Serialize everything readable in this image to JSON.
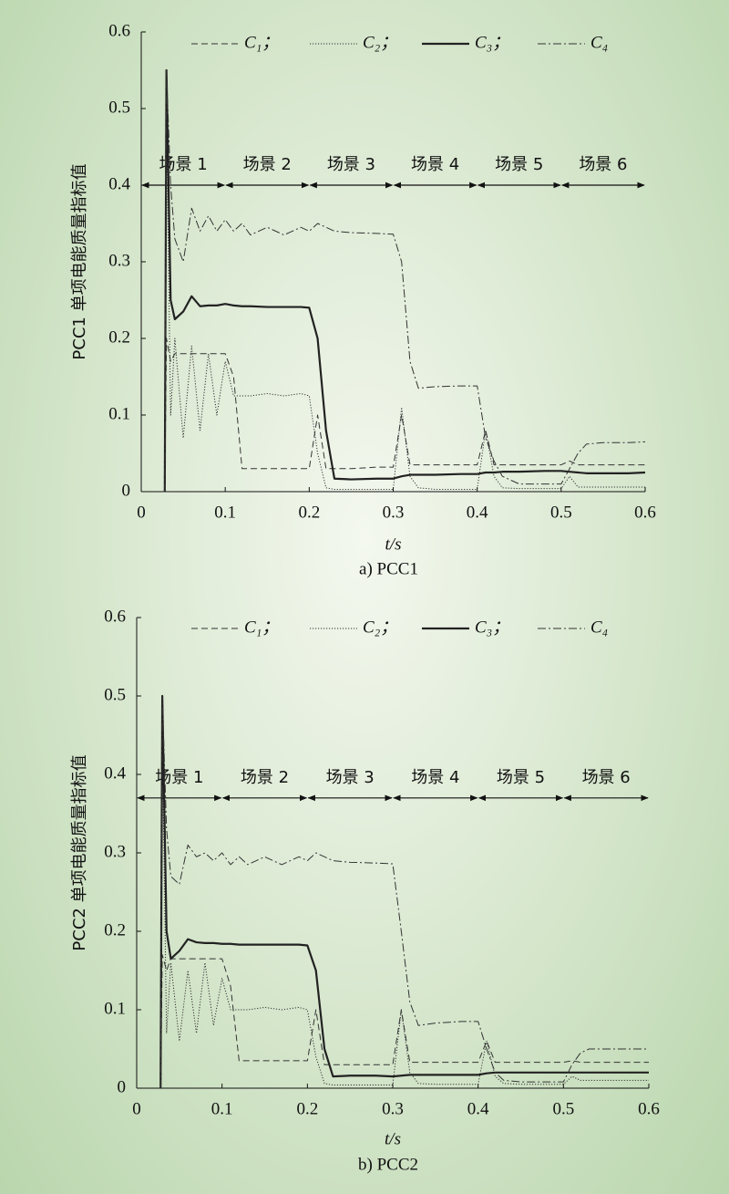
{
  "chart_data": [
    {
      "type": "line",
      "title": "a) PCC1",
      "xlabel": "t/s",
      "ylabel": "PCC1 单项电能质量指标值",
      "xlim": [
        0,
        0.6
      ],
      "ylim": [
        0,
        0.6
      ],
      "xticks": [
        0,
        0.1,
        0.2,
        0.3,
        0.4,
        0.5,
        0.6
      ],
      "yticks": [
        0,
        0.1,
        0.2,
        0.3,
        0.4,
        0.5,
        0.6
      ],
      "x": [
        0.028,
        0.03,
        0.035,
        0.04,
        0.05,
        0.06,
        0.07,
        0.08,
        0.09,
        0.1,
        0.11,
        0.12,
        0.13,
        0.15,
        0.17,
        0.19,
        0.2,
        0.21,
        0.22,
        0.23,
        0.25,
        0.28,
        0.3,
        0.31,
        0.32,
        0.33,
        0.35,
        0.38,
        0.4,
        0.41,
        0.42,
        0.43,
        0.45,
        0.48,
        0.5,
        0.51,
        0.52,
        0.53,
        0.55,
        0.58,
        0.6
      ],
      "series": [
        {
          "name": "C₁；",
          "color": "#333333",
          "linestyle": "dashed",
          "values": [
            0,
            0.2,
            0.17,
            0.18,
            0.18,
            0.18,
            0.18,
            0.18,
            0.18,
            0.18,
            0.15,
            0.03,
            0.03,
            0.03,
            0.03,
            0.03,
            0.03,
            0.1,
            0.03,
            0.03,
            0.03,
            0.032,
            0.032,
            0.1,
            0.035,
            0.035,
            0.035,
            0.035,
            0.035,
            0.08,
            0.035,
            0.035,
            0.035,
            0.035,
            0.035,
            0.04,
            0.035,
            0.035,
            0.035,
            0.035,
            0.035
          ]
        },
        {
          "name": "C₂；",
          "color": "#333333",
          "linestyle": "dotted",
          "values": [
            0,
            0.5,
            0.1,
            0.2,
            0.07,
            0.19,
            0.08,
            0.18,
            0.1,
            0.17,
            0.125,
            0.125,
            0.125,
            0.128,
            0.125,
            0.128,
            0.125,
            0.05,
            0.005,
            0.003,
            0.003,
            0.003,
            0.003,
            0.11,
            0.02,
            0.005,
            0.003,
            0.003,
            0.003,
            0.08,
            0.02,
            0.005,
            0.004,
            0.004,
            0.004,
            0.02,
            0.006,
            0.006,
            0.006,
            0.006,
            0.006
          ]
        },
        {
          "name": "C₃；",
          "color": "#222222",
          "linestyle": "solid",
          "values": [
            0,
            0.55,
            0.25,
            0.225,
            0.235,
            0.255,
            0.242,
            0.243,
            0.243,
            0.245,
            0.243,
            0.242,
            0.242,
            0.241,
            0.241,
            0.241,
            0.24,
            0.2,
            0.08,
            0.017,
            0.016,
            0.017,
            0.017,
            0.02,
            0.022,
            0.022,
            0.022,
            0.023,
            0.023,
            0.025,
            0.025,
            0.026,
            0.026,
            0.027,
            0.027,
            0.026,
            0.025,
            0.024,
            0.024,
            0.024,
            0.025
          ]
        },
        {
          "name": "C₄",
          "color": "#333333",
          "linestyle": "dashdot",
          "values": [
            0,
            0.55,
            0.4,
            0.33,
            0.3,
            0.37,
            0.34,
            0.36,
            0.34,
            0.355,
            0.34,
            0.35,
            0.335,
            0.345,
            0.335,
            0.345,
            0.34,
            0.35,
            0.345,
            0.34,
            0.338,
            0.337,
            0.336,
            0.3,
            0.17,
            0.135,
            0.137,
            0.138,
            0.138,
            0.07,
            0.04,
            0.02,
            0.01,
            0.01,
            0.01,
            0.03,
            0.05,
            0.062,
            0.064,
            0.064,
            0.065
          ]
        }
      ],
      "scenario_y": 0.4,
      "scenarios": [
        {
          "label": "场景 1",
          "range": [
            0,
            0.1
          ]
        },
        {
          "label": "场景 2",
          "range": [
            0.1,
            0.2
          ]
        },
        {
          "label": "场景 3",
          "range": [
            0.2,
            0.3
          ]
        },
        {
          "label": "场景 4",
          "range": [
            0.3,
            0.4
          ]
        },
        {
          "label": "场景 5",
          "range": [
            0.4,
            0.5
          ]
        },
        {
          "label": "场景 6",
          "range": [
            0.5,
            0.6
          ]
        }
      ]
    },
    {
      "type": "line",
      "title": "b) PCC2",
      "xlabel": "t/s",
      "ylabel": "PCC2 单项电能质量指标值",
      "xlim": [
        0,
        0.6
      ],
      "ylim": [
        0,
        0.6
      ],
      "xticks": [
        0,
        0.1,
        0.2,
        0.3,
        0.4,
        0.5,
        0.6
      ],
      "yticks": [
        0,
        0.1,
        0.2,
        0.3,
        0.4,
        0.5,
        0.6
      ],
      "x": [
        0.028,
        0.03,
        0.035,
        0.04,
        0.05,
        0.06,
        0.07,
        0.08,
        0.09,
        0.1,
        0.11,
        0.12,
        0.13,
        0.15,
        0.17,
        0.19,
        0.2,
        0.21,
        0.22,
        0.23,
        0.25,
        0.28,
        0.3,
        0.31,
        0.32,
        0.33,
        0.35,
        0.38,
        0.4,
        0.41,
        0.42,
        0.43,
        0.45,
        0.48,
        0.5,
        0.51,
        0.52,
        0.53,
        0.55,
        0.58,
        0.6
      ],
      "series": [
        {
          "name": "C₁；",
          "color": "#333333",
          "linestyle": "dashed",
          "values": [
            0,
            0.17,
            0.15,
            0.165,
            0.165,
            0.165,
            0.165,
            0.165,
            0.165,
            0.165,
            0.13,
            0.035,
            0.035,
            0.035,
            0.035,
            0.035,
            0.035,
            0.1,
            0.03,
            0.03,
            0.03,
            0.03,
            0.03,
            0.1,
            0.033,
            0.033,
            0.033,
            0.033,
            0.033,
            0.06,
            0.033,
            0.033,
            0.033,
            0.033,
            0.033,
            0.035,
            0.033,
            0.033,
            0.033,
            0.033,
            0.033
          ]
        },
        {
          "name": "C₂；",
          "color": "#333333",
          "linestyle": "dotted",
          "values": [
            0,
            0.45,
            0.07,
            0.16,
            0.06,
            0.15,
            0.07,
            0.16,
            0.08,
            0.14,
            0.1,
            0.1,
            0.1,
            0.103,
            0.1,
            0.103,
            0.1,
            0.04,
            0.006,
            0.004,
            0.004,
            0.004,
            0.004,
            0.1,
            0.02,
            0.006,
            0.005,
            0.005,
            0.005,
            0.06,
            0.015,
            0.006,
            0.005,
            0.005,
            0.005,
            0.015,
            0.01,
            0.01,
            0.01,
            0.01,
            0.01
          ]
        },
        {
          "name": "C₃；",
          "color": "#222222",
          "linestyle": "solid",
          "values": [
            0,
            0.5,
            0.2,
            0.165,
            0.175,
            0.19,
            0.186,
            0.185,
            0.185,
            0.184,
            0.184,
            0.183,
            0.183,
            0.183,
            0.183,
            0.183,
            0.182,
            0.15,
            0.05,
            0.015,
            0.016,
            0.016,
            0.015,
            0.016,
            0.017,
            0.017,
            0.017,
            0.017,
            0.017,
            0.019,
            0.02,
            0.02,
            0.02,
            0.02,
            0.02,
            0.02,
            0.02,
            0.02,
            0.02,
            0.02,
            0.02
          ]
        },
        {
          "name": "C₄",
          "color": "#333333",
          "linestyle": "dashdot",
          "values": [
            0,
            0.5,
            0.33,
            0.27,
            0.26,
            0.31,
            0.295,
            0.3,
            0.29,
            0.3,
            0.285,
            0.295,
            0.285,
            0.295,
            0.285,
            0.295,
            0.29,
            0.3,
            0.295,
            0.29,
            0.288,
            0.287,
            0.286,
            0.2,
            0.11,
            0.08,
            0.083,
            0.085,
            0.085,
            0.05,
            0.02,
            0.01,
            0.008,
            0.008,
            0.008,
            0.03,
            0.045,
            0.05,
            0.05,
            0.05,
            0.05
          ]
        }
      ],
      "scenario_y": 0.37,
      "scenarios": [
        {
          "label": "场景 1",
          "range": [
            0,
            0.1
          ]
        },
        {
          "label": "场景 2",
          "range": [
            0.1,
            0.2
          ]
        },
        {
          "label": "场景 3",
          "range": [
            0.2,
            0.3
          ]
        },
        {
          "label": "场景 4",
          "range": [
            0.3,
            0.4
          ]
        },
        {
          "label": "场景 5",
          "range": [
            0.4,
            0.5
          ]
        },
        {
          "label": "场景 6",
          "range": [
            0.5,
            0.6
          ]
        }
      ]
    }
  ]
}
